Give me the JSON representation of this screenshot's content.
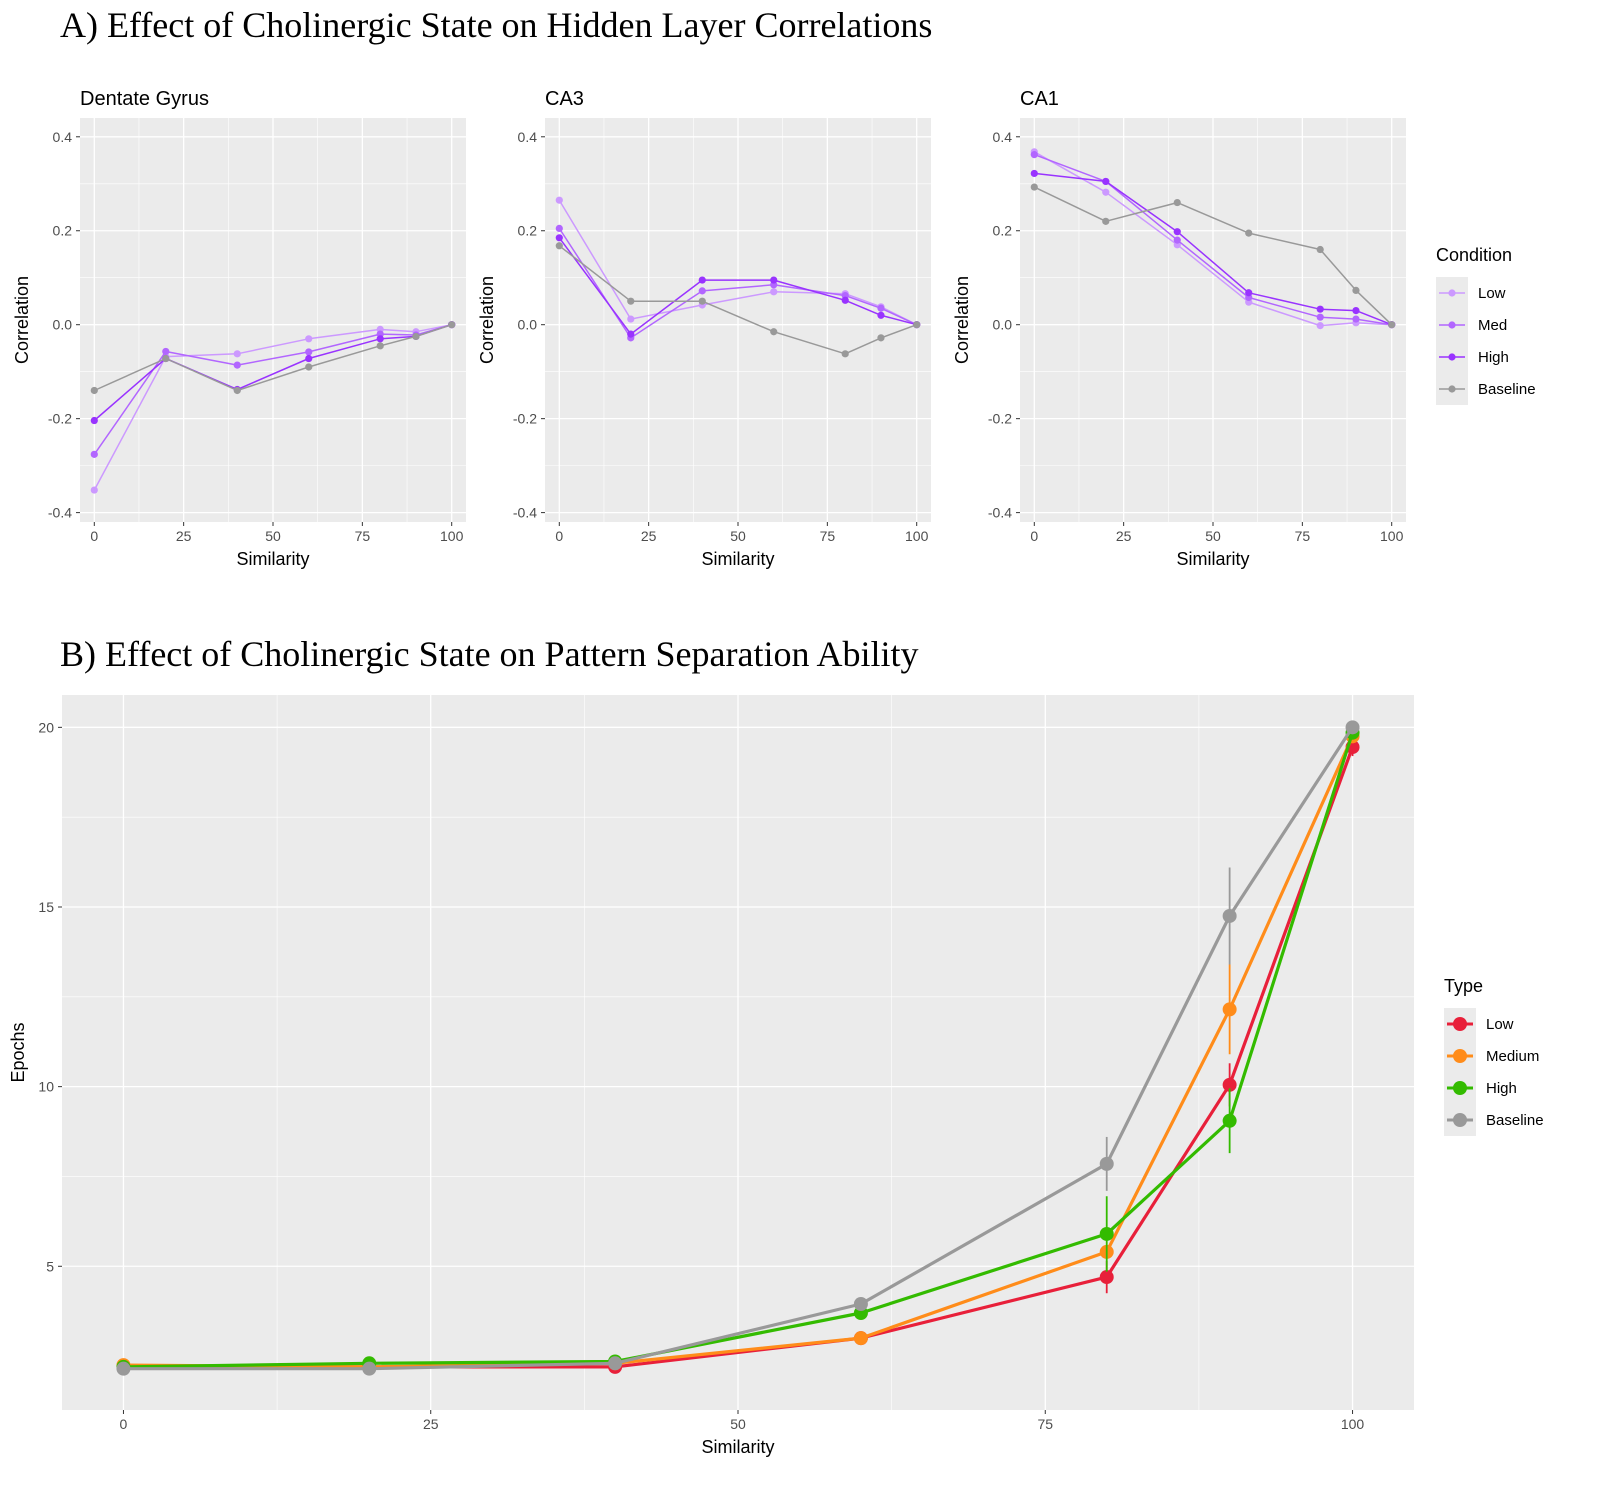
{
  "figure": {
    "title_a": "A) Effect of Cholinergic State on Hidden Layer Correlations",
    "title_b": "B) Effect of Cholinergic State on Pattern Separation Ability"
  },
  "chart_data": [
    {
      "type": "line",
      "title": "Dentate Gyrus",
      "xlabel": "Similarity",
      "ylabel": "Correlation",
      "x": [
        0,
        20,
        40,
        60,
        80,
        90,
        100
      ],
      "xticks": [
        0,
        25,
        50,
        75,
        100
      ],
      "xlim": [
        -4,
        104
      ],
      "yticks": [
        -0.4,
        -0.2,
        0.0,
        0.2,
        0.4
      ],
      "ytick_labels": [
        "-0.4",
        "-0.2",
        "0.0",
        "0.2",
        "0.4"
      ],
      "ylim": [
        -0.42,
        0.44
      ],
      "grid": true,
      "series": [
        {
          "name": "Low",
          "color": "#cc99ff",
          "values": [
            -0.352,
            -0.068,
            -0.062,
            -0.03,
            -0.01,
            -0.015,
            0.0
          ]
        },
        {
          "name": "Med",
          "color": "#b266ff",
          "values": [
            -0.276,
            -0.057,
            -0.086,
            -0.058,
            -0.02,
            -0.022,
            0.0
          ]
        },
        {
          "name": "High",
          "color": "#9933ff",
          "values": [
            -0.204,
            -0.072,
            -0.138,
            -0.072,
            -0.03,
            -0.025,
            0.0
          ]
        },
        {
          "name": "Baseline",
          "color": "#999999",
          "values": [
            -0.14,
            -0.072,
            -0.14,
            -0.09,
            -0.045,
            -0.025,
            0.0
          ]
        }
      ]
    },
    {
      "type": "line",
      "title": "CA3",
      "xlabel": "Similarity",
      "ylabel": "Correlation",
      "x": [
        0,
        20,
        40,
        60,
        80,
        90,
        100
      ],
      "xticks": [
        0,
        25,
        50,
        75,
        100
      ],
      "xlim": [
        -4,
        104
      ],
      "yticks": [
        -0.4,
        -0.2,
        0.0,
        0.2,
        0.4
      ],
      "ytick_labels": [
        "-0.4",
        "-0.2",
        "0.0",
        "0.2",
        "0.4"
      ],
      "ylim": [
        -0.42,
        0.44
      ],
      "grid": true,
      "series": [
        {
          "name": "Low",
          "color": "#cc99ff",
          "values": [
            0.265,
            0.012,
            0.042,
            0.07,
            0.066,
            0.038,
            0.0
          ]
        },
        {
          "name": "Med",
          "color": "#b266ff",
          "values": [
            0.205,
            -0.028,
            0.072,
            0.085,
            0.062,
            0.035,
            0.0
          ]
        },
        {
          "name": "High",
          "color": "#9933ff",
          "values": [
            0.185,
            -0.02,
            0.095,
            0.095,
            0.052,
            0.02,
            0.0
          ]
        },
        {
          "name": "Baseline",
          "color": "#999999",
          "values": [
            0.168,
            0.05,
            0.05,
            -0.015,
            -0.062,
            -0.028,
            0.0
          ]
        }
      ]
    },
    {
      "type": "line",
      "title": "CA1",
      "xlabel": "Similarity",
      "ylabel": "Correlation",
      "x": [
        0,
        20,
        40,
        60,
        80,
        90,
        100
      ],
      "xticks": [
        0,
        25,
        50,
        75,
        100
      ],
      "xlim": [
        -4,
        104
      ],
      "yticks": [
        -0.4,
        -0.2,
        0.0,
        0.2,
        0.4
      ],
      "ytick_labels": [
        "-0.4",
        "-0.2",
        "0.0",
        "0.2",
        "0.4"
      ],
      "ylim": [
        -0.42,
        0.44
      ],
      "grid": true,
      "series": [
        {
          "name": "Low",
          "color": "#cc99ff",
          "values": [
            0.368,
            0.282,
            0.17,
            0.048,
            -0.002,
            0.004,
            0.0
          ]
        },
        {
          "name": "Med",
          "color": "#b266ff",
          "values": [
            0.362,
            0.305,
            0.18,
            0.058,
            0.016,
            0.012,
            0.0
          ]
        },
        {
          "name": "High",
          "color": "#9933ff",
          "values": [
            0.322,
            0.305,
            0.198,
            0.068,
            0.033,
            0.03,
            0.0
          ]
        },
        {
          "name": "Baseline",
          "color": "#999999",
          "values": [
            0.293,
            0.22,
            0.26,
            0.195,
            0.16,
            0.073,
            0.0
          ]
        }
      ]
    },
    {
      "type": "line",
      "title": "",
      "xlabel": "Similarity",
      "ylabel": "Epochs",
      "x": [
        0,
        20,
        40,
        60,
        80,
        90,
        100
      ],
      "xticks": [
        0,
        25,
        50,
        75,
        100
      ],
      "xlim": [
        -5,
        105
      ],
      "yticks": [
        5,
        10,
        15,
        20
      ],
      "ytick_labels": [
        "5",
        "10",
        "15",
        "20"
      ],
      "ylim": [
        1.0,
        20.9
      ],
      "grid": true,
      "series": [
        {
          "name": "Low",
          "color": "#e8203a",
          "values": [
            2.2,
            2.2,
            2.2,
            3.0,
            4.7,
            10.05,
            19.45
          ],
          "err": [
            0,
            0,
            0,
            0,
            0.45,
            0.6,
            0.25
          ]
        },
        {
          "name": "Medium",
          "color": "#ff8c1a",
          "values": [
            2.25,
            2.2,
            2.3,
            3.0,
            5.4,
            12.15,
            19.75
          ],
          "err": [
            0,
            0,
            0,
            0,
            0,
            1.25,
            0
          ]
        },
        {
          "name": "High",
          "color": "#33bb00",
          "values": [
            2.2,
            2.3,
            2.35,
            3.7,
            5.9,
            9.05,
            19.85
          ],
          "err": [
            0,
            0,
            0,
            0.1,
            1.05,
            0.9,
            0
          ]
        },
        {
          "name": "Baseline",
          "color": "#999999",
          "values": [
            2.15,
            2.15,
            2.3,
            3.95,
            7.85,
            14.75,
            20.0
          ],
          "err": [
            0,
            0,
            0,
            0.15,
            0.75,
            1.35,
            0
          ]
        }
      ]
    }
  ],
  "legend_a": {
    "title": "Condition",
    "placement": "right",
    "items": [
      {
        "label": "Low",
        "color": "#cc99ff"
      },
      {
        "label": "Med",
        "color": "#b266ff"
      },
      {
        "label": "High",
        "color": "#9933ff"
      },
      {
        "label": "Baseline",
        "color": "#999999"
      }
    ]
  },
  "legend_b": {
    "title": "Type",
    "placement": "right",
    "items": [
      {
        "label": "Low",
        "color": "#e8203a"
      },
      {
        "label": "Medium",
        "color": "#ff8c1a"
      },
      {
        "label": "High",
        "color": "#33bb00"
      },
      {
        "label": "Baseline",
        "color": "#999999"
      }
    ]
  }
}
